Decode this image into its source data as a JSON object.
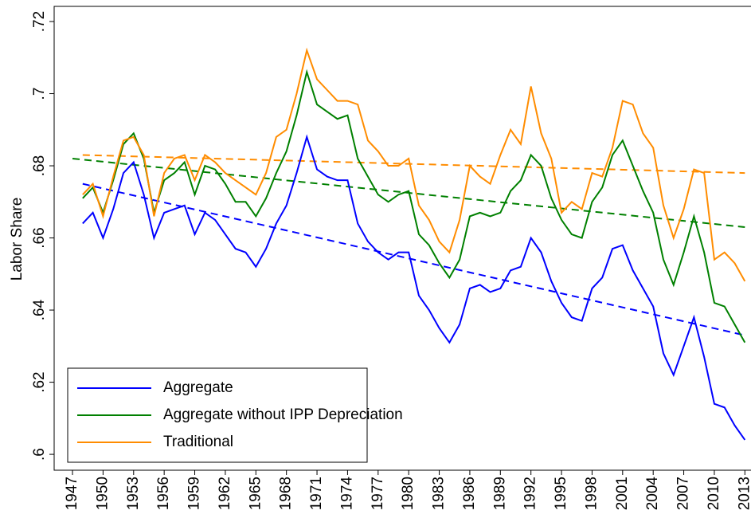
{
  "chart_data": {
    "type": "line",
    "y_label": "Labor Share",
    "x": [
      1948,
      1949,
      1950,
      1951,
      1952,
      1953,
      1954,
      1955,
      1956,
      1957,
      1958,
      1959,
      1960,
      1961,
      1962,
      1963,
      1964,
      1965,
      1966,
      1967,
      1968,
      1969,
      1970,
      1971,
      1972,
      1973,
      1974,
      1975,
      1976,
      1977,
      1978,
      1979,
      1980,
      1981,
      1982,
      1983,
      1984,
      1985,
      1986,
      1987,
      1988,
      1989,
      1990,
      1991,
      1992,
      1993,
      1994,
      1995,
      1996,
      1997,
      1998,
      1999,
      2000,
      2001,
      2002,
      2003,
      2004,
      2005,
      2006,
      2007,
      2008,
      2009,
      2010,
      2011,
      2012,
      2013
    ],
    "series": [
      {
        "name": "Aggregate",
        "color": "#0000ff",
        "values": [
          0.664,
          0.667,
          0.66,
          0.668,
          0.678,
          0.681,
          0.672,
          0.66,
          0.667,
          0.668,
          0.669,
          0.661,
          0.667,
          0.665,
          0.661,
          0.657,
          0.656,
          0.652,
          0.657,
          0.664,
          0.669,
          0.678,
          0.688,
          0.679,
          0.677,
          0.676,
          0.676,
          0.664,
          0.659,
          0.656,
          0.654,
          0.656,
          0.656,
          0.644,
          0.64,
          0.635,
          0.631,
          0.636,
          0.646,
          0.647,
          0.645,
          0.646,
          0.651,
          0.652,
          0.66,
          0.656,
          0.648,
          0.642,
          0.638,
          0.637,
          0.646,
          0.649,
          0.657,
          0.658,
          0.651,
          0.646,
          0.641,
          0.628,
          0.622,
          0.63,
          0.638,
          0.627,
          0.614,
          0.613,
          0.608,
          0.604
        ]
      },
      {
        "name": "Aggregate without IPP Depreciation",
        "color": "#008000",
        "values": [
          0.671,
          0.674,
          0.667,
          0.676,
          0.686,
          0.689,
          0.682,
          0.667,
          0.676,
          0.678,
          0.681,
          0.672,
          0.68,
          0.679,
          0.675,
          0.67,
          0.67,
          0.666,
          0.671,
          0.678,
          0.684,
          0.694,
          0.706,
          0.697,
          0.695,
          0.693,
          0.694,
          0.682,
          0.677,
          0.672,
          0.67,
          0.672,
          0.673,
          0.661,
          0.658,
          0.653,
          0.649,
          0.654,
          0.666,
          0.667,
          0.666,
          0.667,
          0.673,
          0.676,
          0.683,
          0.68,
          0.671,
          0.665,
          0.661,
          0.66,
          0.67,
          0.674,
          0.683,
          0.687,
          0.68,
          0.673,
          0.667,
          0.654,
          0.647,
          0.656,
          0.666,
          0.656,
          0.642,
          0.641,
          0.636,
          0.631
        ]
      },
      {
        "name": "Traditional",
        "color": "#ff8c00",
        "values": [
          0.672,
          0.675,
          0.666,
          0.677,
          0.687,
          0.688,
          0.683,
          0.666,
          0.678,
          0.682,
          0.683,
          0.676,
          0.683,
          0.681,
          0.678,
          0.676,
          0.674,
          0.672,
          0.678,
          0.688,
          0.69,
          0.7,
          0.712,
          0.704,
          0.701,
          0.698,
          0.698,
          0.697,
          0.687,
          0.684,
          0.68,
          0.68,
          0.682,
          0.669,
          0.665,
          0.659,
          0.656,
          0.665,
          0.68,
          0.677,
          0.675,
          0.683,
          0.69,
          0.686,
          0.702,
          0.689,
          0.682,
          0.667,
          0.67,
          0.668,
          0.678,
          0.677,
          0.685,
          0.698,
          0.697,
          0.689,
          0.685,
          0.669,
          0.66,
          0.668,
          0.679,
          0.678,
          0.654,
          0.656,
          0.653,
          0.648
        ]
      }
    ],
    "trend_lines": [
      {
        "color": "#0000ff",
        "x": [
          1948,
          2013
        ],
        "values": [
          0.675,
          0.633
        ]
      },
      {
        "color": "#008000",
        "x": [
          1947,
          2013
        ],
        "values": [
          0.682,
          0.663
        ]
      },
      {
        "color": "#ff8c00",
        "x": [
          1948,
          2013
        ],
        "values": [
          0.683,
          0.678
        ]
      }
    ],
    "xlim": [
      1945.2,
      2013.6
    ],
    "ylim": [
      0.5956,
      0.7242
    ],
    "xticks": [
      1947,
      1950,
      1953,
      1956,
      1959,
      1962,
      1965,
      1968,
      1971,
      1974,
      1977,
      1980,
      1983,
      1986,
      1989,
      1992,
      1995,
      1998,
      2001,
      2004,
      2007,
      2010,
      2013
    ],
    "yticks": [
      {
        "value": 0.6,
        "label": ".6"
      },
      {
        "value": 0.62,
        "label": ".62"
      },
      {
        "value": 0.64,
        "label": ".64"
      },
      {
        "value": 0.66,
        "label": ".66"
      },
      {
        "value": 0.68,
        "label": ".68"
      },
      {
        "value": 0.7,
        "label": ".7"
      },
      {
        "value": 0.72,
        "label": ".72"
      }
    ],
    "legend": "bottom-left",
    "grid": false
  }
}
